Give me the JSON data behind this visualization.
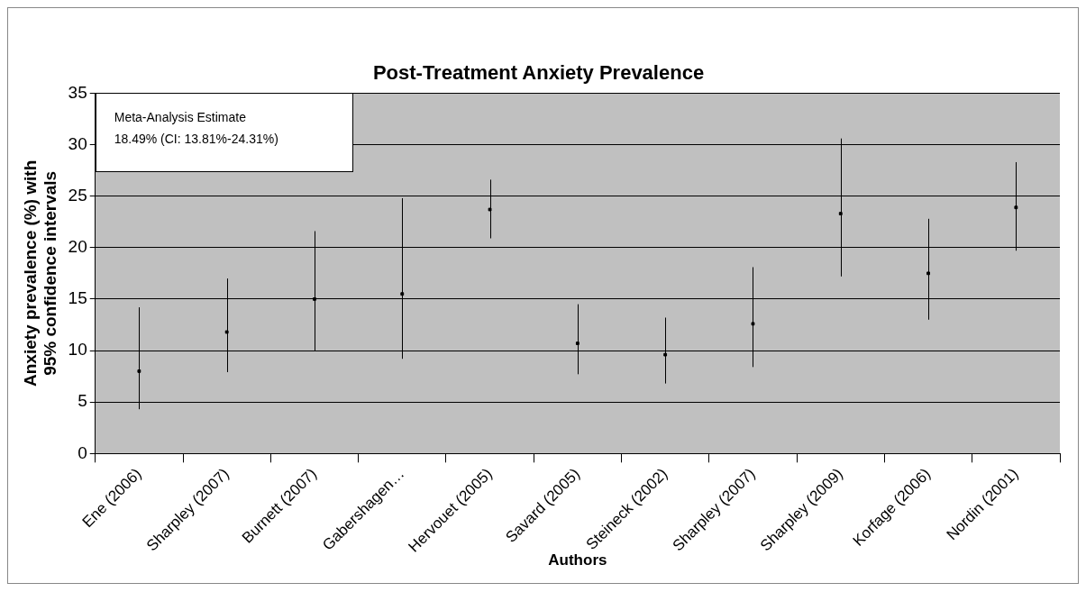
{
  "chart_data": {
    "type": "scatter",
    "title": "Post-Treatment Anxiety Prevalence",
    "xlabel": "Authors",
    "ylabel": "Anxiety prevalence (%) with 95% confidence intervals",
    "categories": [
      "Ene (2006)",
      "Sharpley (2007)",
      "Burnett (2007)",
      "Gabershagen…",
      "Hervouet (2005)",
      "Savard (2005)",
      "Steineck (2002)",
      "Sharpley (2007)",
      "Sharpley (2009)",
      "Korfage (2006)",
      "Nordin (2001)"
    ],
    "values": [
      8.0,
      11.8,
      15.0,
      15.5,
      23.7,
      10.7,
      9.6,
      12.6,
      23.3,
      17.5,
      23.9
    ],
    "errors": [
      [
        4.3,
        14.2
      ],
      [
        7.9,
        17.0
      ],
      [
        10.0,
        21.6
      ],
      [
        9.2,
        24.8
      ],
      [
        20.9,
        26.6
      ],
      [
        7.7,
        14.5
      ],
      [
        6.8,
        13.2
      ],
      [
        8.4,
        18.1
      ],
      [
        17.2,
        30.6
      ],
      [
        13.0,
        22.8
      ],
      [
        19.7,
        28.3
      ]
    ],
    "color": "#000000",
    "marker": "square",
    "ylim": [
      0,
      35
    ],
    "yticks": [
      0,
      5,
      10,
      15,
      20,
      25,
      30,
      35
    ],
    "grid": "y",
    "legend": false,
    "annotations": [
      "Meta-Analysis Estimate\n18.49% (CI: 13.81%-24.31%)"
    ]
  }
}
